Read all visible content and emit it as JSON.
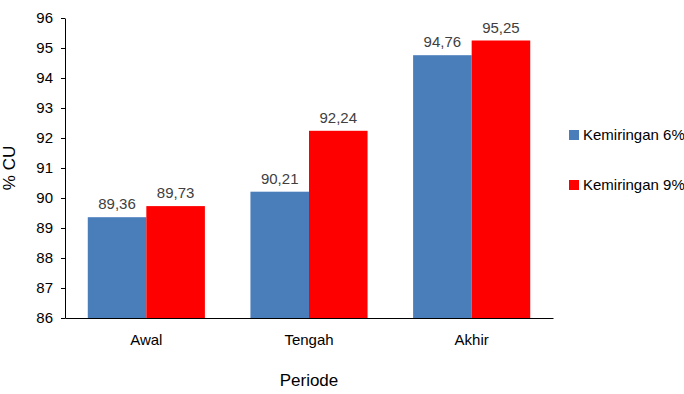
{
  "chart_data": {
    "type": "bar",
    "x_label": "Periode",
    "y_label": "% CU",
    "categories": [
      "Awal",
      "Tengah",
      "Akhir"
    ],
    "series": [
      {
        "name": "Kemiringan 6%",
        "color": "#4a7ebb",
        "values": [
          89.36,
          90.21,
          94.76
        ],
        "value_labels": [
          "89,36",
          "90,21",
          "94,76"
        ]
      },
      {
        "name": "Kemiringan 9%",
        "color": "#ff0000",
        "values": [
          89.73,
          92.24,
          95.25
        ],
        "value_labels": [
          "89,73",
          "92,24",
          "95,25"
        ]
      }
    ],
    "ylim": [
      86,
      96
    ],
    "yticks": [
      86,
      87,
      88,
      89,
      90,
      91,
      92,
      93,
      94,
      95,
      96
    ],
    "grid": false,
    "data_labels": true,
    "legend": "right"
  }
}
